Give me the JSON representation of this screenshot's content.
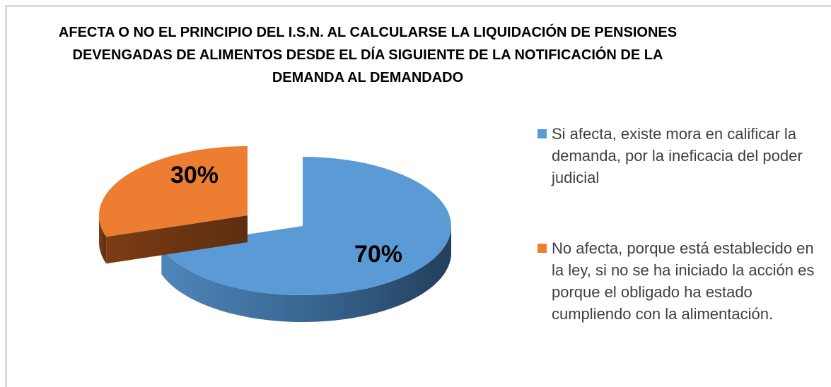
{
  "chart_data": {
    "type": "pie3d",
    "title": "AFECTA O NO  EL PRINCIPIO DEL I.S.N. AL CALCULARSE LA LIQUIDACIÓN DE PENSIONES DEVENGADAS DE ALIMENTOS DESDE EL DÍA SIGUIENTE DE LA NOTIFICACIÓN DE LA DEMANDA AL DEMANDADO",
    "categories": [
      "Si afecta, existe mora en calificar la demanda, por la ineficacia del poder judicial",
      "No afecta, porque está establecido en la ley, si no se ha iniciado la acción es porque el obligado ha estado cumpliendo con la alimentación."
    ],
    "values": [
      70,
      30
    ],
    "value_labels": [
      "70%",
      "30%"
    ],
    "colors": [
      "#5b9bd5",
      "#ed7d31"
    ],
    "legend": "right"
  }
}
